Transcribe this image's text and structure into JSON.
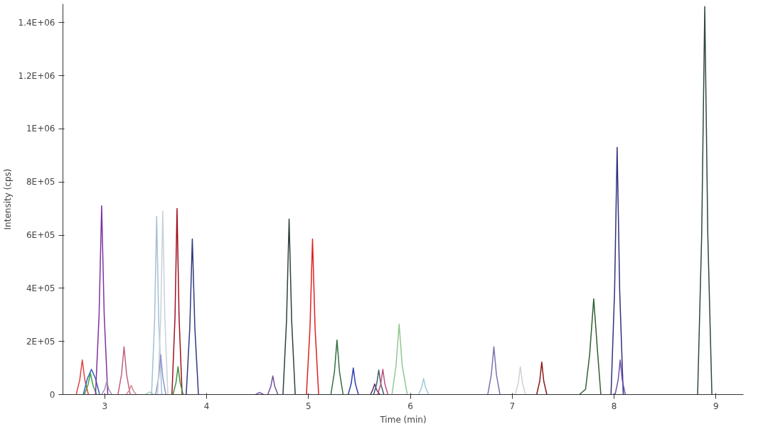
{
  "chart_data": {
    "type": "line",
    "xlabel": "Time (min)",
    "ylabel": "Intensity (cps)",
    "xlim": [
      2.59,
      9.27
    ],
    "xticks": [
      3,
      4,
      5,
      6,
      7,
      8,
      9
    ],
    "ylim": [
      0,
      1470000
    ],
    "yticks": [
      {
        "value": 0,
        "label": "0"
      },
      {
        "value": 200000,
        "label": "2E+05"
      },
      {
        "value": 400000,
        "label": "4E+05"
      },
      {
        "value": 600000,
        "label": "6E+05"
      },
      {
        "value": 800000,
        "label": "8E+05"
      },
      {
        "value": 1000000,
        "label": "1E+06"
      },
      {
        "value": 1200000,
        "label": "1.2E+06"
      },
      {
        "value": 1400000,
        "label": "1.4E+06"
      }
    ],
    "grid": false,
    "series": [
      {
        "color": "#e04040",
        "x": [
          2.72,
          2.755,
          2.78,
          2.805,
          2.84
        ],
        "values": [
          0,
          55000,
          130000,
          55000,
          0
        ]
      },
      {
        "color": "#3060c0",
        "x": [
          2.79,
          2.83,
          2.87,
          2.91,
          2.95
        ],
        "values": [
          0,
          60000,
          95000,
          60000,
          0
        ]
      },
      {
        "color": "#40a040",
        "x": [
          2.8,
          2.835,
          2.86,
          2.885,
          2.92
        ],
        "values": [
          0,
          35000,
          80000,
          35000,
          0
        ]
      },
      {
        "color": "#8030a0",
        "x": [
          2.91,
          2.945,
          2.97,
          2.995,
          3.03
        ],
        "values": [
          0,
          300000,
          710000,
          300000,
          0
        ]
      },
      {
        "color": "#a090b0",
        "x": [
          2.97,
          3.0,
          3.02,
          3.04,
          3.07
        ],
        "values": [
          0,
          20000,
          50000,
          20000,
          0
        ]
      },
      {
        "color": "#c06080",
        "x": [
          3.13,
          3.165,
          3.19,
          3.215,
          3.25
        ],
        "values": [
          0,
          75000,
          180000,
          75000,
          0
        ]
      },
      {
        "color": "#d08898",
        "x": [
          3.21,
          3.24,
          3.26,
          3.28,
          3.31
        ],
        "values": [
          0,
          15000,
          35000,
          15000,
          0
        ]
      },
      {
        "color": "#a8d0b8",
        "x": [
          3.4,
          3.42,
          3.44,
          3.46,
          3.48
        ],
        "values": [
          0,
          5000,
          10000,
          5000,
          0
        ]
      },
      {
        "color": "#a0c0d8",
        "x": [
          3.46,
          3.49,
          3.51,
          3.53,
          3.56
        ],
        "values": [
          0,
          280000,
          670000,
          280000,
          0
        ]
      },
      {
        "color": "#9090d0",
        "x": [
          3.5,
          3.53,
          3.55,
          3.57,
          3.6
        ],
        "values": [
          0,
          65000,
          150000,
          65000,
          0
        ]
      },
      {
        "color": "#c8d0d8",
        "x": [
          3.52,
          3.55,
          3.57,
          3.59,
          3.62
        ],
        "values": [
          0,
          290000,
          690000,
          290000,
          0
        ]
      },
      {
        "color": "#a01020",
        "x": [
          3.66,
          3.69,
          3.71,
          3.73,
          3.76
        ],
        "values": [
          0,
          290000,
          700000,
          290000,
          0
        ]
      },
      {
        "color": "#409040",
        "x": [
          3.67,
          3.7,
          3.72,
          3.74,
          3.77
        ],
        "values": [
          0,
          45000,
          105000,
          45000,
          0
        ]
      },
      {
        "color": "#303880",
        "x": [
          3.8,
          3.835,
          3.86,
          3.885,
          3.92
        ],
        "values": [
          0,
          250000,
          585000,
          250000,
          0
        ]
      },
      {
        "color": "#8060b0",
        "x": [
          4.48,
          4.5,
          4.52,
          4.54,
          4.56
        ],
        "values": [
          0,
          4000,
          8000,
          4000,
          0
        ]
      },
      {
        "color": "#7050a0",
        "x": [
          4.6,
          4.63,
          4.65,
          4.67,
          4.7
        ],
        "values": [
          0,
          30000,
          70000,
          30000,
          0
        ]
      },
      {
        "color": "#304040",
        "x": [
          4.75,
          4.785,
          4.81,
          4.835,
          4.87
        ],
        "values": [
          0,
          280000,
          660000,
          280000,
          0
        ]
      },
      {
        "color": "#e02020",
        "x": [
          4.98,
          5.015,
          5.04,
          5.065,
          5.1
        ],
        "values": [
          0,
          250000,
          585000,
          250000,
          0
        ]
      },
      {
        "color": "#307040",
        "x": [
          5.22,
          5.255,
          5.28,
          5.305,
          5.34
        ],
        "values": [
          0,
          85000,
          205000,
          85000,
          0
        ]
      },
      {
        "color": "#3040b0",
        "x": [
          5.39,
          5.42,
          5.44,
          5.46,
          5.49
        ],
        "values": [
          0,
          42000,
          100000,
          42000,
          0
        ]
      },
      {
        "color": "#603070",
        "x": [
          5.61,
          5.63,
          5.65,
          5.67,
          5.7
        ],
        "values": [
          0,
          17000,
          40000,
          17000,
          0
        ]
      },
      {
        "color": "#406070",
        "x": [
          5.64,
          5.67,
          5.69,
          5.71,
          5.74
        ],
        "values": [
          0,
          40000,
          92000,
          40000,
          0
        ]
      },
      {
        "color": "#c05080",
        "x": [
          5.68,
          5.71,
          5.73,
          5.75,
          5.78
        ],
        "values": [
          0,
          40000,
          95000,
          40000,
          0
        ]
      },
      {
        "color": "#90c890",
        "x": [
          5.82,
          5.86,
          5.89,
          5.92,
          5.97
        ],
        "values": [
          0,
          110000,
          265000,
          110000,
          0
        ]
      },
      {
        "color": "#a0c8d8",
        "x": [
          6.08,
          6.11,
          6.13,
          6.15,
          6.18
        ],
        "values": [
          0,
          25000,
          60000,
          25000,
          0
        ]
      },
      {
        "color": "#8070b0",
        "x": [
          6.76,
          6.795,
          6.82,
          6.845,
          6.88
        ],
        "values": [
          0,
          75000,
          180000,
          75000,
          0
        ]
      },
      {
        "color": "#d0d0d0",
        "x": [
          7.03,
          7.06,
          7.08,
          7.1,
          7.13
        ],
        "values": [
          0,
          45000,
          105000,
          45000,
          0
        ]
      },
      {
        "color": "#901818",
        "x": [
          7.24,
          7.27,
          7.29,
          7.31,
          7.34
        ],
        "values": [
          0,
          50000,
          122000,
          50000,
          0
        ]
      },
      {
        "color": "#306030",
        "x": [
          7.66,
          7.72,
          7.76,
          7.8,
          7.84,
          7.87
        ],
        "values": [
          0,
          20000,
          150000,
          360000,
          150000,
          0
        ]
      },
      {
        "color": "#303080",
        "x": [
          7.97,
          8.005,
          8.03,
          8.055,
          8.09
        ],
        "values": [
          0,
          390000,
          930000,
          390000,
          0
        ]
      },
      {
        "color": "#7050b0",
        "x": [
          8.01,
          8.04,
          8.06,
          8.08,
          8.11
        ],
        "values": [
          0,
          55000,
          130000,
          55000,
          0
        ]
      },
      {
        "color": "#304840",
        "x": [
          8.82,
          8.86,
          8.89,
          8.92,
          8.96
        ],
        "values": [
          0,
          600000,
          1460000,
          600000,
          0
        ]
      }
    ]
  }
}
